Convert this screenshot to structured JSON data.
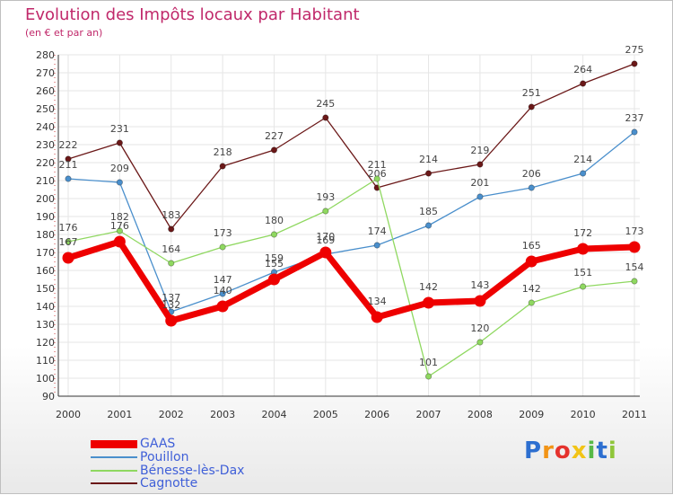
{
  "header": {
    "title": "Evolution des Impôts locaux par Habitant",
    "subtitle": "(en € et par an)"
  },
  "chart_data": {
    "type": "line",
    "title": "Evolution des Impôts locaux par Habitant",
    "subtitle": "(en € et par an)",
    "xlabel": "",
    "ylabel": "",
    "ylim": [
      90,
      280
    ],
    "ytick_step": 10,
    "grid": true,
    "categories": [
      "2000",
      "2001",
      "2002",
      "2003",
      "2004",
      "2005",
      "2006",
      "2007",
      "2008",
      "2009",
      "2010",
      "2011"
    ],
    "series": [
      {
        "name": "GAAS",
        "color": "#ee0000",
        "values": [
          167,
          176,
          132,
          140,
          155,
          170,
          134,
          142,
          143,
          165,
          172,
          173
        ]
      },
      {
        "name": "Pouillon",
        "color": "#4a8fcc",
        "values": [
          211,
          209,
          137,
          147,
          159,
          169,
          174,
          185,
          201,
          206,
          214,
          237
        ]
      },
      {
        "name": "Bénesse-lès-Dax",
        "color": "#8fd860",
        "values": [
          176,
          182,
          164,
          173,
          180,
          193,
          211,
          101,
          120,
          142,
          151,
          154
        ]
      },
      {
        "name": "Cagnotte",
        "color": "#6b1818",
        "values": [
          222,
          231,
          183,
          218,
          227,
          245,
          206,
          214,
          219,
          251,
          264,
          275
        ]
      }
    ],
    "legend_position": "bottom-left"
  },
  "legend": {
    "items": [
      {
        "label": "GAAS"
      },
      {
        "label": "Pouillon"
      },
      {
        "label": "Bénesse-lès-Dax"
      },
      {
        "label": "Cagnotte"
      }
    ]
  },
  "logo": {
    "letters": [
      "P",
      "r",
      "o",
      "x",
      "i",
      "t",
      "i"
    ],
    "colors": [
      "#2d6fd0",
      "#f29416",
      "#e5322d",
      "#f2c416",
      "#57b947",
      "#2d6fd0",
      "#8fc63a"
    ]
  }
}
